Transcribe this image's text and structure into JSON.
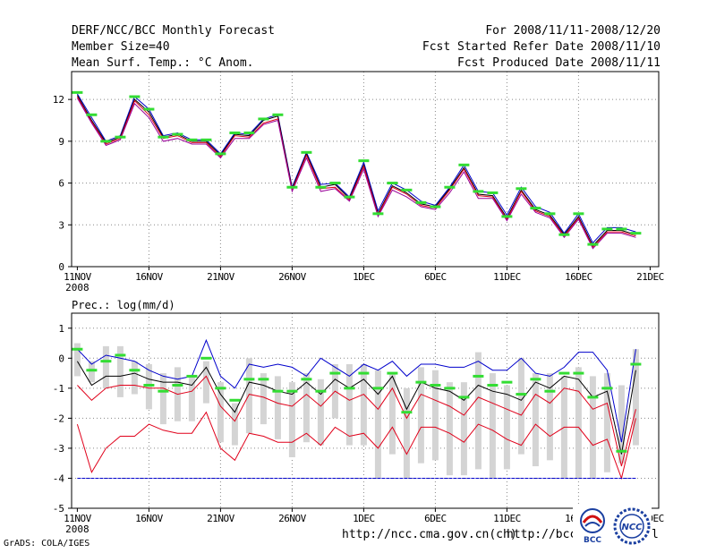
{
  "header": {
    "title": "DERF/NCC/BCC Monthly Forecast",
    "member_size": "Member Size=40",
    "variable": "Mean Surf. Temp.: °C Anom.",
    "period": "For 2008/11/11-2008/12/20",
    "refer_date": "Fcst Started Refer Date 2008/11/10",
    "produced_date": "Fcst Produced Date 2008/11/11"
  },
  "precip_label": "Prec.: log(mm/d)",
  "footer": {
    "grads": "GrADS: COLA/IGES",
    "url1": "http://ncc.cma.gov.cn(ch)",
    "url2": "http://bcc.c",
    "url2_tail": "l",
    "logo_bcc": "BCC",
    "logo_ncc": "NCC"
  },
  "colors": {
    "blue": "#0000cc",
    "red": "#e0001a",
    "black": "#000000",
    "green": "#33dd33",
    "grey_bar": "#d4d4d4",
    "purple": "#990099"
  },
  "chart_data": [
    {
      "type": "line",
      "title": "Mean Surf. Temp.: °C Anom.",
      "x": [
        1,
        2,
        3,
        4,
        5,
        6,
        7,
        8,
        9,
        10,
        11,
        12,
        13,
        14,
        15,
        16,
        17,
        18,
        19,
        20,
        21,
        22,
        23,
        24,
        25,
        26,
        27,
        28,
        29,
        30,
        31,
        32,
        33,
        34,
        35,
        36,
        37,
        38,
        39,
        40
      ],
      "ylim": [
        0,
        14
      ],
      "yticks": [
        0,
        3,
        6,
        9,
        12
      ],
      "xtick_positions": [
        1,
        6,
        11,
        16,
        21,
        26,
        31,
        36,
        41
      ],
      "xtick_labels": [
        "11NOV",
        "16NOV",
        "21NOV",
        "26NOV",
        "1DEC",
        "6DEC",
        "11DEC",
        "16DEC",
        "21DEC"
      ],
      "year_label": "2008",
      "grid": true,
      "series": [
        {
          "name": "blue",
          "values": [
            12.4,
            10.7,
            9.0,
            9.4,
            12.2,
            11.3,
            9.4,
            9.6,
            9.1,
            9.1,
            8.1,
            9.6,
            9.5,
            10.6,
            10.9,
            5.7,
            8.2,
            5.9,
            6.0,
            5.0,
            7.5,
            4.0,
            6.0,
            5.5,
            4.7,
            4.4,
            5.7,
            7.3,
            5.4,
            5.3,
            3.7,
            5.7,
            4.3,
            3.9,
            2.4,
            3.8,
            1.7,
            2.8,
            2.8,
            2.5
          ]
        },
        {
          "name": "black",
          "values": [
            12.3,
            10.5,
            8.9,
            9.3,
            12.0,
            11.1,
            9.3,
            9.5,
            9.0,
            9.0,
            8.0,
            9.5,
            9.4,
            10.5,
            10.8,
            5.6,
            8.1,
            5.7,
            5.9,
            4.9,
            7.3,
            3.8,
            5.8,
            5.3,
            4.5,
            4.3,
            5.6,
            7.1,
            5.2,
            5.1,
            3.5,
            5.5,
            4.1,
            3.7,
            2.3,
            3.6,
            1.5,
            2.6,
            2.6,
            2.3
          ]
        },
        {
          "name": "red",
          "values": [
            12.2,
            10.4,
            8.8,
            9.2,
            11.9,
            10.9,
            9.2,
            9.4,
            8.9,
            8.9,
            7.9,
            9.4,
            9.3,
            10.3,
            10.6,
            5.5,
            8.0,
            5.6,
            5.7,
            4.8,
            7.2,
            3.7,
            5.7,
            5.2,
            4.4,
            4.2,
            5.5,
            7.0,
            5.1,
            5.0,
            3.4,
            5.4,
            4.0,
            3.6,
            2.2,
            3.5,
            1.4,
            2.5,
            2.5,
            2.2
          ]
        },
        {
          "name": "purple",
          "values": [
            12.1,
            10.3,
            8.7,
            9.1,
            11.7,
            10.7,
            9.0,
            9.2,
            8.8,
            8.8,
            7.8,
            9.2,
            9.2,
            10.2,
            10.5,
            5.4,
            7.8,
            5.4,
            5.6,
            4.7,
            7.0,
            3.6,
            5.5,
            5.0,
            4.3,
            4.1,
            5.3,
            6.8,
            4.9,
            4.9,
            3.3,
            5.2,
            3.9,
            3.5,
            2.1,
            3.4,
            1.3,
            2.4,
            2.4,
            2.1
          ]
        }
      ],
      "observed_marks": [
        12.5,
        10.9,
        9.0,
        9.3,
        12.2,
        11.3,
        9.3,
        9.5,
        9.1,
        9.1,
        8.1,
        9.6,
        9.6,
        10.6,
        10.9,
        5.7,
        8.2,
        5.7,
        6.0,
        5.0,
        7.6,
        3.8,
        6.0,
        5.5,
        4.6,
        4.3,
        5.7,
        7.3,
        5.4,
        5.3,
        3.6,
        5.6,
        4.2,
        3.8,
        2.3,
        3.8,
        1.6,
        2.7,
        2.7,
        2.4
      ]
    },
    {
      "type": "line",
      "title": "Prec.: log(mm/d)",
      "x": [
        1,
        2,
        3,
        4,
        5,
        6,
        7,
        8,
        9,
        10,
        11,
        12,
        13,
        14,
        15,
        16,
        17,
        18,
        19,
        20,
        21,
        22,
        23,
        24,
        25,
        26,
        27,
        28,
        29,
        30,
        31,
        32,
        33,
        34,
        35,
        36,
        37,
        38,
        39,
        40
      ],
      "ylim": [
        -5,
        1.5
      ],
      "yticks": [
        -5,
        -4,
        -3,
        -2,
        -1,
        0,
        1
      ],
      "xtick_positions": [
        1,
        6,
        11,
        16,
        21,
        26,
        31,
        36,
        41
      ],
      "xtick_labels": [
        "11NOV",
        "16NOV",
        "21NOV",
        "26NOV",
        "1DEC",
        "6DEC",
        "11DEC",
        "16DEC",
        "21DEC"
      ],
      "year_label": "2008",
      "grid": true,
      "series": [
        {
          "name": "blue_upper",
          "values": [
            0.3,
            -0.2,
            0.1,
            0.0,
            -0.1,
            -0.4,
            -0.6,
            -0.7,
            -0.6,
            0.6,
            -0.6,
            -1.0,
            -0.2,
            -0.3,
            -0.2,
            -0.3,
            -0.6,
            0.0,
            -0.3,
            -0.6,
            -0.2,
            -0.4,
            -0.1,
            -0.6,
            -0.2,
            -0.2,
            -0.3,
            -0.3,
            -0.1,
            -0.4,
            -0.4,
            0.0,
            -0.5,
            -0.6,
            -0.3,
            0.2,
            0.2,
            -0.4,
            -2.8,
            0.3
          ]
        },
        {
          "name": "black_mean",
          "values": [
            -0.1,
            -0.9,
            -0.6,
            -0.6,
            -0.5,
            -0.7,
            -0.8,
            -0.8,
            -0.9,
            -0.3,
            -1.2,
            -1.8,
            -0.8,
            -0.9,
            -1.1,
            -1.2,
            -0.8,
            -1.2,
            -0.7,
            -1.0,
            -0.7,
            -1.2,
            -0.6,
            -1.7,
            -0.8,
            -1.0,
            -1.1,
            -1.4,
            -0.9,
            -1.1,
            -1.2,
            -1.4,
            -0.8,
            -1.0,
            -0.6,
            -0.7,
            -1.3,
            -1.1,
            -3.2,
            -0.4
          ]
        },
        {
          "name": "red_upper",
          "values": [
            -0.9,
            -1.4,
            -1.0,
            -0.9,
            -0.9,
            -1.0,
            -1.0,
            -1.2,
            -1.1,
            -0.6,
            -1.6,
            -2.1,
            -1.2,
            -1.3,
            -1.5,
            -1.6,
            -1.2,
            -1.6,
            -1.1,
            -1.4,
            -1.2,
            -1.7,
            -1.0,
            -2.0,
            -1.2,
            -1.4,
            -1.6,
            -1.9,
            -1.3,
            -1.5,
            -1.7,
            -1.9,
            -1.2,
            -1.5,
            -1.0,
            -1.1,
            -1.7,
            -1.5,
            -3.6,
            -1.7
          ]
        },
        {
          "name": "red_lower",
          "values": [
            -2.2,
            -3.8,
            -3.0,
            -2.6,
            -2.6,
            -2.2,
            -2.4,
            -2.5,
            -2.5,
            -1.8,
            -3.0,
            -3.4,
            -2.5,
            -2.6,
            -2.8,
            -2.8,
            -2.5,
            -2.9,
            -2.3,
            -2.6,
            -2.5,
            -3.0,
            -2.3,
            -3.2,
            -2.3,
            -2.3,
            -2.5,
            -2.8,
            -2.2,
            -2.4,
            -2.7,
            -2.9,
            -2.2,
            -2.6,
            -2.3,
            -2.3,
            -2.9,
            -2.7,
            -4.0,
            -2.0
          ]
        },
        {
          "name": "blue_floor",
          "values": [
            -4,
            -4,
            -4,
            -4,
            -4,
            -4,
            -4,
            -4,
            -4,
            -4,
            -4,
            -4,
            -4,
            -4,
            -4,
            -4,
            -4,
            -4,
            -4,
            -4,
            -4,
            -4,
            -4,
            -4,
            -4,
            -4,
            -4,
            -4,
            -4,
            -4,
            -4,
            -4,
            -4,
            -4,
            -4,
            -4,
            -4,
            -4,
            -4,
            -4
          ]
        }
      ],
      "observed_marks": [
        0.3,
        -0.4,
        -0.1,
        0.1,
        -0.4,
        -0.9,
        -1.1,
        -0.9,
        -0.6,
        0.0,
        -1.0,
        -1.4,
        -0.7,
        -0.7,
        -1.1,
        -1.1,
        -0.7,
        -1.1,
        -0.5,
        -1.0,
        -0.5,
        -1.0,
        -0.5,
        -1.8,
        -0.8,
        -0.9,
        -1.0,
        -1.3,
        -0.6,
        -0.9,
        -0.8,
        -1.2,
        -0.7,
        -1.1,
        -0.5,
        -0.5,
        -1.3,
        -1.0,
        -3.1,
        -0.2
      ],
      "spread_bars": [
        [
          -0.6,
          0.5
        ],
        [
          -0.8,
          -0.1
        ],
        [
          -1.0,
          0.4
        ],
        [
          -1.3,
          0.4
        ],
        [
          -1.2,
          -0.1
        ],
        [
          -1.7,
          -0.2
        ],
        [
          -2.2,
          -0.5
        ],
        [
          -2.1,
          -0.3
        ],
        [
          -2.1,
          -0.6
        ],
        [
          -1.5,
          -0.1
        ],
        [
          -2.8,
          -0.8
        ],
        [
          -2.9,
          -1.5
        ],
        [
          -2.5,
          0.0
        ],
        [
          -2.2,
          -0.5
        ],
        [
          -2.7,
          -0.6
        ],
        [
          -3.3,
          -0.8
        ],
        [
          -2.8,
          -0.5
        ],
        [
          -2.9,
          -0.7
        ],
        [
          -2.0,
          -0.2
        ],
        [
          -2.9,
          -0.2
        ],
        [
          -2.9,
          -0.2
        ],
        [
          -4.0,
          -0.4
        ],
        [
          -3.2,
          -0.5
        ],
        [
          -4.0,
          -1.0
        ],
        [
          -3.5,
          -0.3
        ],
        [
          -3.4,
          -0.4
        ],
        [
          -3.9,
          -0.8
        ],
        [
          -3.9,
          -0.8
        ],
        [
          -3.7,
          0.2
        ],
        [
          -4.0,
          -0.5
        ],
        [
          -3.7,
          -0.9
        ],
        [
          -3.2,
          0.0
        ],
        [
          -3.6,
          -0.5
        ],
        [
          -3.4,
          -0.5
        ],
        [
          -4.0,
          -0.6
        ],
        [
          -4.0,
          -0.3
        ],
        [
          -4.0,
          -0.6
        ],
        [
          -3.8,
          -0.5
        ],
        [
          -3.5,
          -0.9
        ],
        [
          -2.9,
          0.3
        ]
      ]
    }
  ]
}
